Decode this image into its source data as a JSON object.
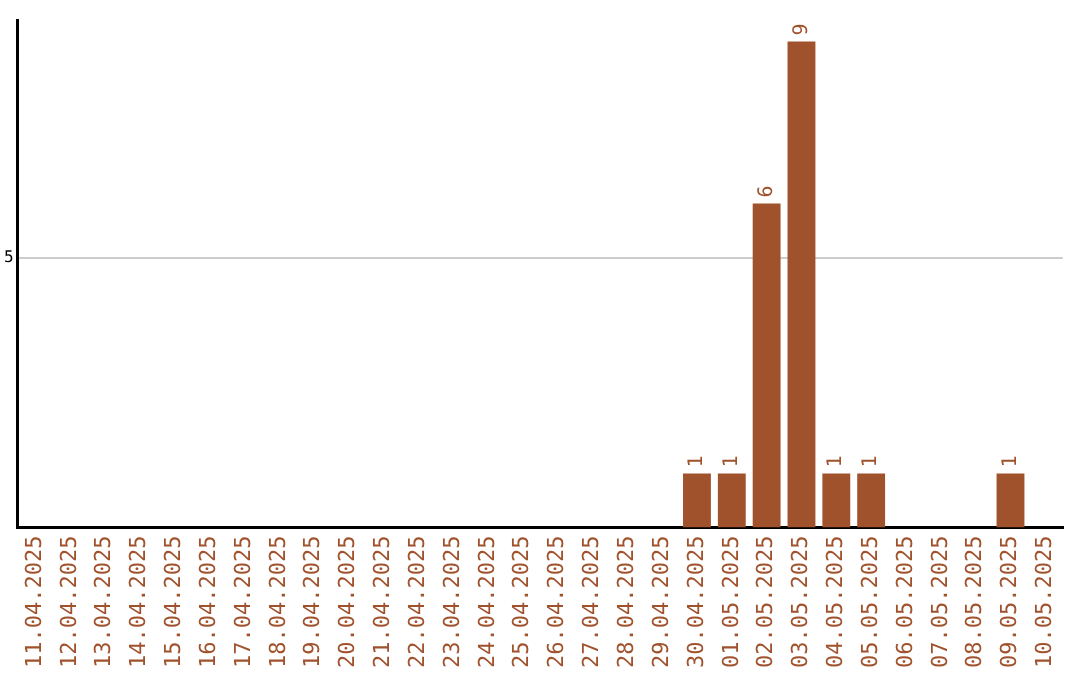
{
  "chart_data": {
    "type": "bar",
    "categories": [
      "11.04.2025",
      "12.04.2025",
      "13.04.2025",
      "14.04.2025",
      "15.04.2025",
      "16.04.2025",
      "17.04.2025",
      "18.04.2025",
      "19.04.2025",
      "20.04.2025",
      "21.04.2025",
      "22.04.2025",
      "23.04.2025",
      "24.04.2025",
      "25.04.2025",
      "26.04.2025",
      "27.04.2025",
      "28.04.2025",
      "29.04.2025",
      "30.04.2025",
      "01.05.2025",
      "02.05.2025",
      "03.05.2025",
      "04.05.2025",
      "05.05.2025",
      "06.05.2025",
      "07.05.2025",
      "08.05.2025",
      "09.05.2025",
      "10.05.2025"
    ],
    "values": [
      null,
      null,
      null,
      null,
      null,
      null,
      null,
      null,
      null,
      null,
      null,
      null,
      null,
      null,
      null,
      null,
      null,
      null,
      null,
      1,
      1,
      6,
      9,
      1,
      1,
      null,
      null,
      null,
      1,
      null
    ],
    "color": "#a0522d",
    "ylim": [
      0,
      9.4
    ],
    "yticks": [
      5
    ],
    "grid": "y",
    "data_labels": true,
    "legend": false
  }
}
